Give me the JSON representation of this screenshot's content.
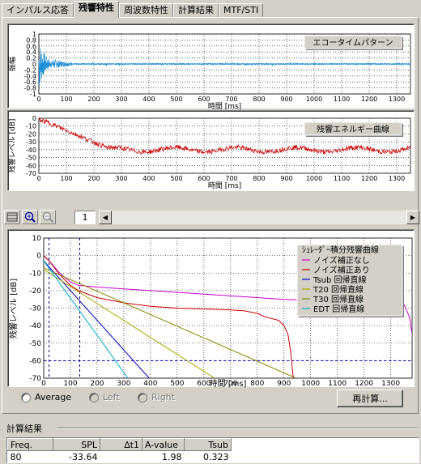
{
  "tabs": [
    "インパルス応答",
    "残響特性",
    "周波数特性",
    "計算結果",
    "MTF/STI"
  ],
  "active_tab": 1,
  "chart1": {
    "title": "エコータイムパターン",
    "ylabel": "振幅",
    "xlabel": "時間 [ms]",
    "yticks": [
      "1",
      "0.8",
      "0.6",
      "0.4",
      "0.2",
      "0",
      "-0.2",
      "-0.4",
      "-0.6",
      "-0.8",
      "-1"
    ],
    "xticks": [
      "0",
      "100",
      "200",
      "300",
      "400",
      "500",
      "600",
      "700",
      "800",
      "900",
      "1000",
      "1100",
      "1200",
      "1300"
    ],
    "ylim": [
      -1,
      1
    ],
    "xlim": [
      0,
      1350
    ],
    "line_color": "#1e8ed8"
  },
  "chart2": {
    "title": "残響エネルギー曲線",
    "ylabel": "残響レベル [dB]",
    "xlabel": "時間 [ms]",
    "yticks": [
      "0",
      "-10",
      "-20",
      "-30",
      "-40",
      "-50",
      "-60",
      "-70"
    ],
    "xticks": [
      "0",
      "100",
      "200",
      "300",
      "400",
      "500",
      "600",
      "700",
      "800",
      "900",
      "1000",
      "1100",
      "1200",
      "1300"
    ],
    "ylim": [
      -70,
      0
    ],
    "xlim": [
      0,
      1350
    ],
    "line_color": "#cc0000"
  },
  "toolbar": {
    "page": "1"
  },
  "chart_data": {
    "type": "line",
    "ylabel": "残響レベル [dB]",
    "xlabel": "時間 [ms]",
    "xlim": [
      0,
      1380
    ],
    "ylim": [
      -70,
      10
    ],
    "yticks": [
      "10",
      "0",
      "-10",
      "-20",
      "-30",
      "-40",
      "-50",
      "-60",
      "-70"
    ],
    "xticks": [
      "0",
      "100",
      "200",
      "300",
      "400",
      "500",
      "600",
      "700",
      "800",
      "900",
      "1000",
      "1100",
      "1200",
      "1300"
    ],
    "grid": true,
    "legend_position": "top-right",
    "threshold_db": -60,
    "markers_ms": [
      20,
      135
    ],
    "series": [
      {
        "name": "ｼｭﾚｰﾀﾞｰ積分残響曲線",
        "color": "#000000",
        "x": [],
        "y": []
      },
      {
        "name": "ノイズ補正なし",
        "color": "#cc00cc",
        "x": [
          0,
          20,
          60,
          100,
          130,
          200,
          300,
          400,
          500,
          600,
          700,
          800,
          900,
          1000,
          1100,
          1200,
          1300,
          1350,
          1370,
          1380
        ],
        "y": [
          0,
          -3,
          -10,
          -15,
          -17,
          -18,
          -19,
          -20,
          -21,
          -22,
          -23,
          -24,
          -25,
          -25.5,
          -25.5,
          -25.5,
          -25.5,
          -28,
          -35,
          -45
        ]
      },
      {
        "name": "ノイズ補正あり",
        "color": "#cc0000",
        "x": [
          0,
          20,
          60,
          100,
          130,
          200,
          300,
          400,
          500,
          600,
          700,
          750,
          800,
          830,
          880,
          900,
          915,
          925,
          935
        ],
        "y": [
          0,
          -3,
          -11,
          -17,
          -20,
          -24,
          -27,
          -29,
          -30,
          -30.5,
          -31,
          -31.5,
          -33,
          -35,
          -37,
          -40,
          -45,
          -55,
          -70
        ]
      },
      {
        "name": "Tsub 回帰直線",
        "color": "#0000cc",
        "x": [
          0,
          395
        ],
        "y": [
          -3,
          -70
        ]
      },
      {
        "name": "T20 回帰直線",
        "color": "#aaaa00",
        "x": [
          0,
          640
        ],
        "y": [
          -8,
          -70
        ]
      },
      {
        "name": "T30 回帰直線",
        "color": "#888800",
        "x": [
          0,
          945
        ],
        "y": [
          -7,
          -70
        ]
      },
      {
        "name": "EDT 回帰直線",
        "color": "#00aacc",
        "x": [
          0,
          315
        ],
        "y": [
          -3,
          -70
        ]
      }
    ]
  },
  "controls": {
    "average": "Average",
    "left": "Left",
    "right": "Right",
    "recalc": "再計算..."
  },
  "results": {
    "title": "計算結果",
    "headers": [
      "Freq.",
      "SPL",
      "∆t1",
      "A-value",
      "Tsub"
    ],
    "rows": [
      [
        "80",
        "-33.64",
        "",
        "1.98",
        "0.323"
      ]
    ]
  }
}
